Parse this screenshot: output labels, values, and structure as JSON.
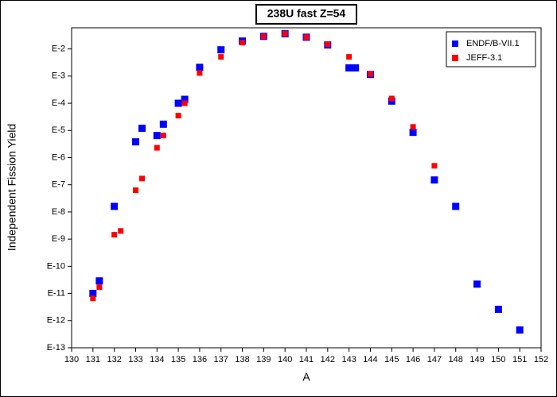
{
  "chart_data": {
    "type": "scatter",
    "title": "238U fast Z=54",
    "xlabel": "A",
    "ylabel": "Independent Fission Yield",
    "yscale": "log",
    "legend": "top-right",
    "grid": false,
    "xlim": [
      130,
      152
    ],
    "xticks": [
      130,
      131,
      132,
      133,
      134,
      135,
      136,
      137,
      138,
      139,
      140,
      141,
      142,
      143,
      144,
      145,
      146,
      147,
      148,
      149,
      150,
      151,
      152
    ],
    "ylim": [
      1e-13,
      0.06
    ],
    "yticks": [
      {
        "value": 1e-13,
        "label": "E-13"
      },
      {
        "value": 1e-12,
        "label": "E-12"
      },
      {
        "value": 1e-11,
        "label": "E-11"
      },
      {
        "value": 1e-10,
        "label": "E-10"
      },
      {
        "value": 1e-09,
        "label": "E-9"
      },
      {
        "value": 1e-08,
        "label": "E-8"
      },
      {
        "value": 1e-07,
        "label": "E-7"
      },
      {
        "value": 1e-06,
        "label": "E-6"
      },
      {
        "value": 1e-05,
        "label": "E-5"
      },
      {
        "value": 0.0001,
        "label": "E-4"
      },
      {
        "value": 0.001,
        "label": "E-3"
      },
      {
        "value": 0.01,
        "label": "E-2"
      }
    ],
    "series": [
      {
        "name": "ENDF/B-VII.1",
        "color": "#0000ff",
        "x": [
          131,
          131.3,
          132,
          133,
          133.3,
          134,
          134.3,
          135,
          135.3,
          136,
          137,
          138,
          139,
          140,
          141,
          142,
          143,
          143.3,
          144,
          145,
          146,
          147,
          148,
          149,
          150,
          151
        ],
        "values": [
          1e-11,
          2.9e-11,
          1.6e-08,
          3.8e-06,
          1.2e-05,
          6.5e-06,
          1.7e-05,
          0.0001,
          0.00014,
          0.0021,
          0.0093,
          0.0195,
          0.029,
          0.036,
          0.027,
          0.014,
          0.002,
          0.002,
          0.00115,
          0.00012,
          8.5e-06,
          1.5e-07,
          1.6e-08,
          2.2e-11,
          2.6e-12,
          4.5e-13
        ]
      },
      {
        "name": "JEFF-3.1",
        "color": "#ff0000",
        "x": [
          131,
          131.3,
          132,
          132.3,
          133,
          133.3,
          134,
          134.3,
          135,
          135.3,
          136,
          137,
          138,
          139,
          140,
          141,
          142,
          143,
          144,
          145,
          146,
          147
        ],
        "values": [
          6.6e-12,
          1.7e-11,
          1.45e-09,
          2e-09,
          6.3e-08,
          1.7e-07,
          2.3e-06,
          6.5e-06,
          3.5e-05,
          0.0001,
          0.0013,
          0.0051,
          0.017,
          0.029,
          0.036,
          0.027,
          0.015,
          0.0051,
          0.0012,
          0.00015,
          1.35e-05,
          5e-07
        ]
      }
    ]
  }
}
